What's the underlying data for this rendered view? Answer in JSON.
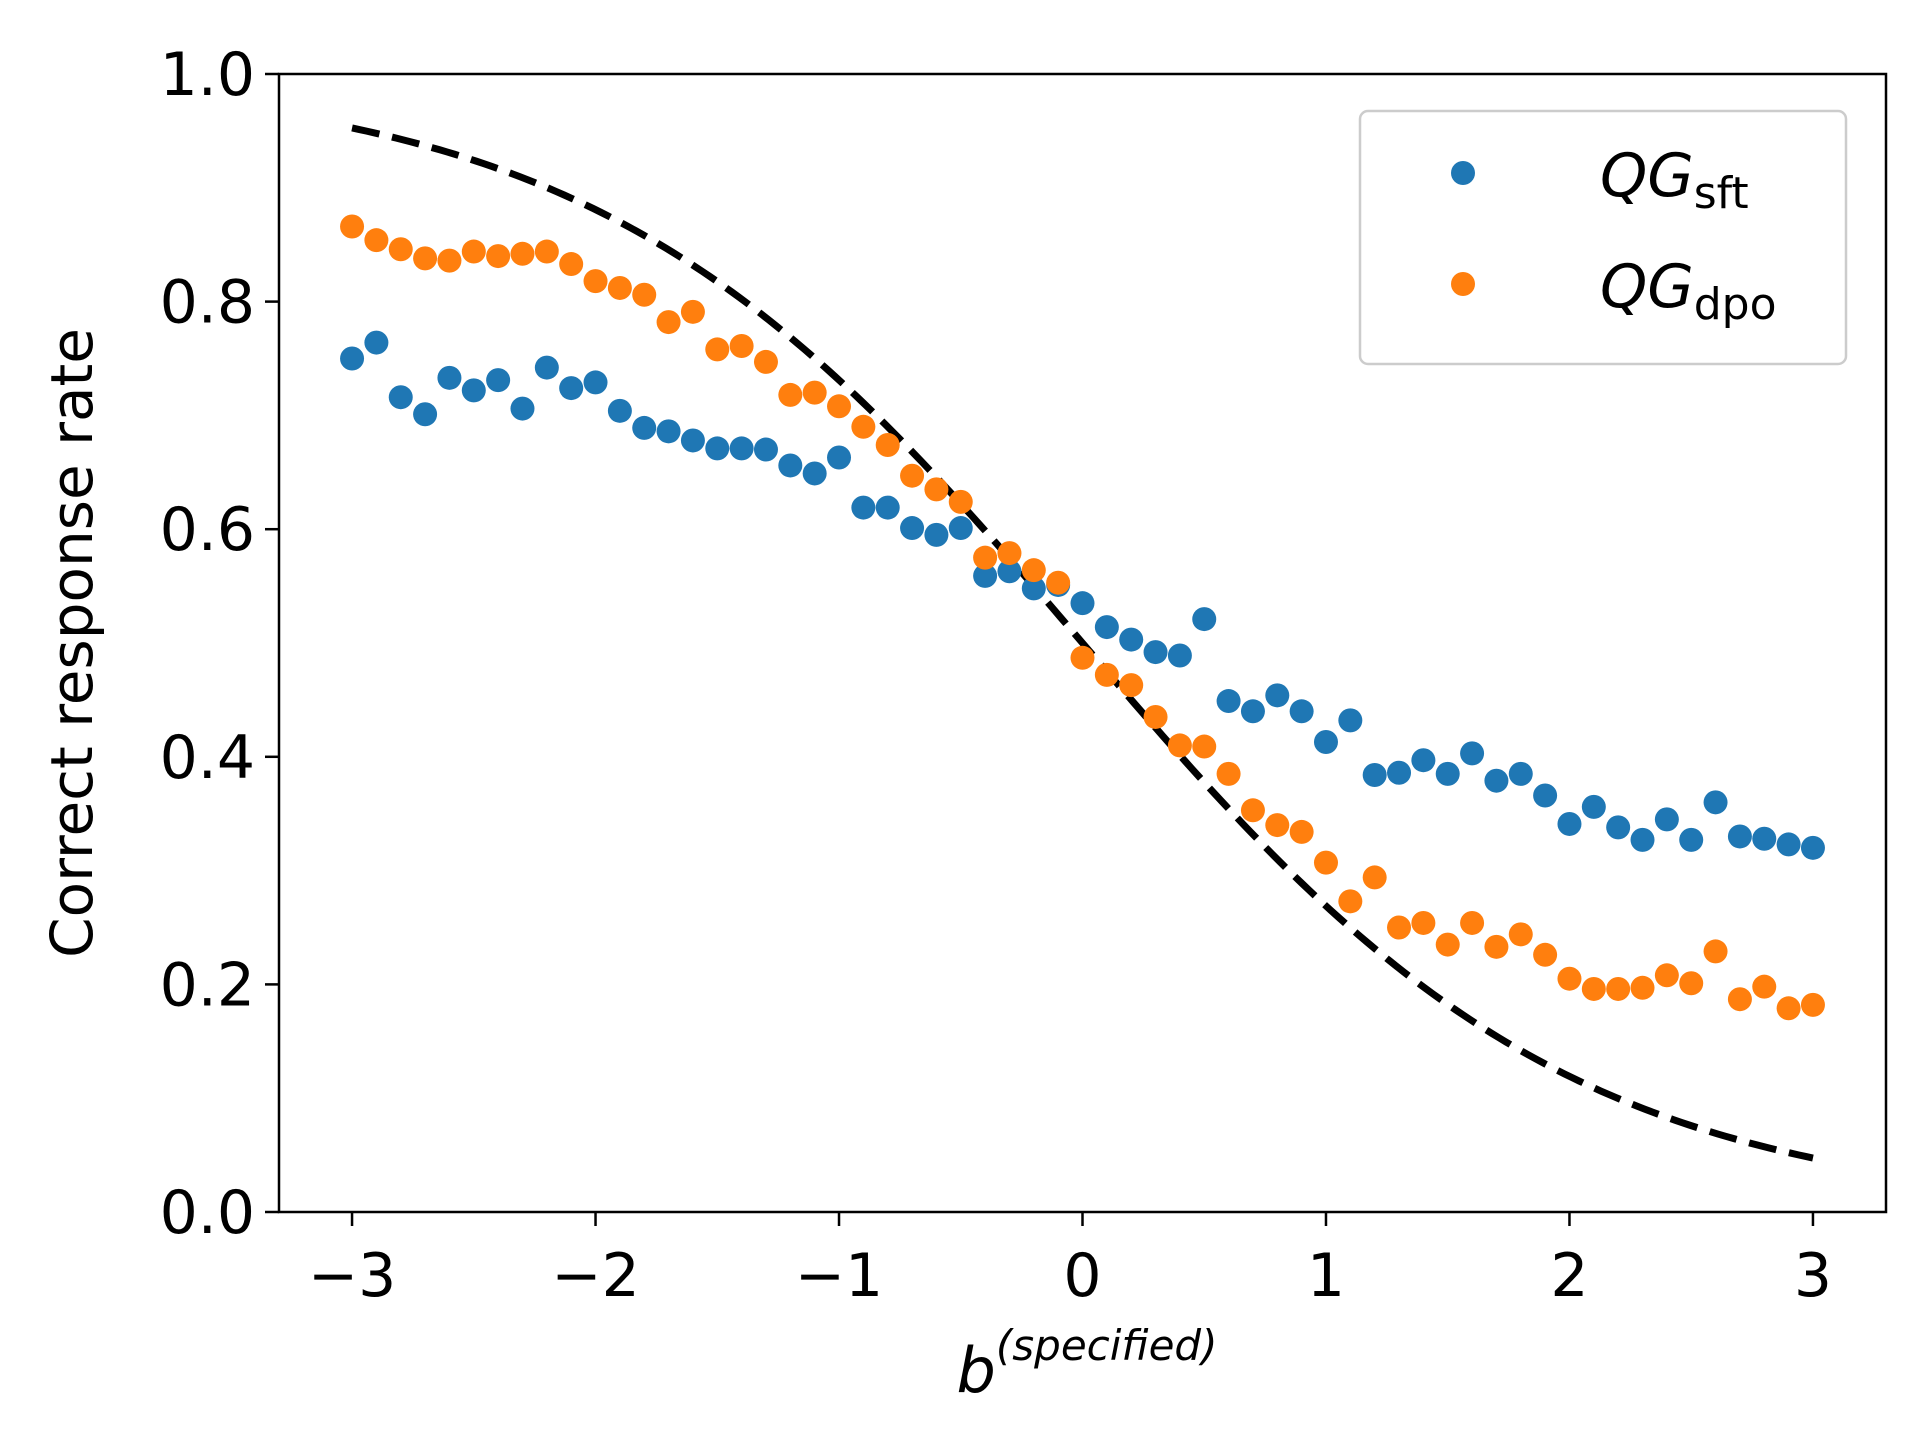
{
  "chart_data": {
    "type": "scatter",
    "title": "",
    "xlabel": {
      "base": "b",
      "superscript": "(specified)"
    },
    "ylabel": "Correct response rate",
    "xlim": [
      -3.3,
      3.3
    ],
    "ylim": [
      0.0,
      1.0
    ],
    "xticks": [
      -3,
      -2,
      -1,
      0,
      1,
      2,
      3
    ],
    "xtick_labels": [
      "−3",
      "−2",
      "−1",
      "0",
      "1",
      "2",
      "3"
    ],
    "yticks": [
      0.0,
      0.2,
      0.4,
      0.6,
      0.8,
      1.0
    ],
    "ytick_labels": [
      "0.0",
      "0.2",
      "0.4",
      "0.6",
      "0.8",
      "1.0"
    ],
    "grid": false,
    "legend_position": "top-right",
    "x": [
      -3.0,
      -2.9,
      -2.8,
      -2.7,
      -2.6,
      -2.5,
      -2.4,
      -2.3,
      -2.2,
      -2.1,
      -2.0,
      -1.9,
      -1.8,
      -1.7,
      -1.6,
      -1.5,
      -1.4,
      -1.3,
      -1.2,
      -1.1,
      -1.0,
      -0.9,
      -0.8,
      -0.7,
      -0.6,
      -0.5,
      -0.4,
      -0.3,
      -0.2,
      -0.1,
      0.0,
      0.1,
      0.2,
      0.3,
      0.4,
      0.5,
      0.6,
      0.7,
      0.8,
      0.9,
      1.0,
      1.1,
      1.2,
      1.3,
      1.4,
      1.5,
      1.6,
      1.7,
      1.8,
      1.9,
      2.0,
      2.1,
      2.2,
      2.3,
      2.4,
      2.5,
      2.6,
      2.7,
      2.8,
      2.9,
      3.0
    ],
    "series": [
      {
        "name": "QG",
        "name_sub": "sft",
        "color": "#1f77b4",
        "values": [
          0.75,
          0.764,
          0.716,
          0.701,
          0.733,
          0.722,
          0.731,
          0.706,
          0.742,
          0.724,
          0.729,
          0.704,
          0.689,
          0.686,
          0.678,
          0.671,
          0.671,
          0.67,
          0.656,
          0.649,
          0.663,
          0.619,
          0.619,
          0.601,
          0.595,
          0.601,
          0.559,
          0.563,
          0.548,
          0.551,
          0.535,
          0.514,
          0.503,
          0.492,
          0.489,
          0.521,
          0.449,
          0.44,
          0.454,
          0.44,
          0.413,
          0.432,
          0.384,
          0.386,
          0.397,
          0.385,
          0.403,
          0.379,
          0.385,
          0.366,
          0.341,
          0.356,
          0.338,
          0.327,
          0.345,
          0.327,
          0.36,
          0.33,
          0.328,
          0.323,
          0.32
        ]
      },
      {
        "name": "QG",
        "name_sub": "dpo",
        "color": "#ff7f0e",
        "values": [
          0.866,
          0.854,
          0.846,
          0.838,
          0.836,
          0.844,
          0.84,
          0.842,
          0.844,
          0.833,
          0.818,
          0.812,
          0.806,
          0.782,
          0.791,
          0.758,
          0.761,
          0.747,
          0.718,
          0.72,
          0.708,
          0.69,
          0.674,
          0.647,
          0.635,
          0.624,
          0.575,
          0.579,
          0.564,
          0.553,
          0.487,
          0.472,
          0.463,
          0.435,
          0.41,
          0.409,
          0.385,
          0.353,
          0.34,
          0.334,
          0.307,
          0.273,
          0.294,
          0.25,
          0.254,
          0.235,
          0.254,
          0.233,
          0.244,
          0.226,
          0.205,
          0.196,
          0.196,
          0.197,
          0.208,
          0.201,
          0.229,
          0.187,
          0.198,
          0.179,
          0.182
        ]
      }
    ],
    "reference_curve": {
      "style": "dashed",
      "color": "#000000",
      "x_range": [
        -3.0,
        3.0
      ],
      "formula": "1 / (1 + exp(x))"
    }
  }
}
